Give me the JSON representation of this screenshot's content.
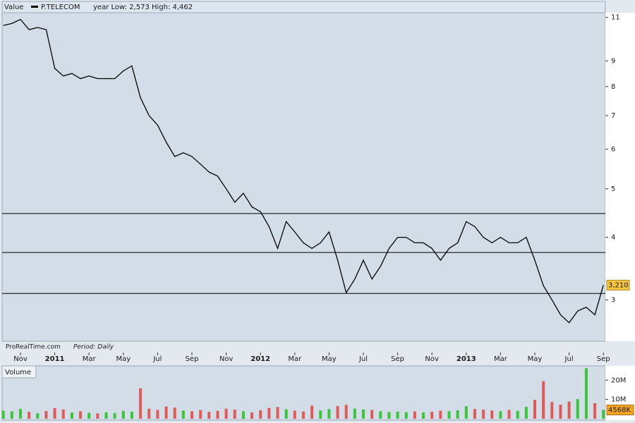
{
  "chart_data": [
    {
      "type": "line",
      "title": "Value",
      "subtitle": "year Low: 2,573 High: 4,462",
      "annotations": [
        "ProRealTime.com",
        "Period: Daily"
      ],
      "log_scale": true,
      "categories": [
        null,
        null,
        "Nov",
        null,
        null,
        null,
        "2011",
        null,
        null,
        null,
        "Mar",
        null,
        null,
        null,
        "May",
        null,
        null,
        null,
        "Jul",
        null,
        null,
        null,
        "Sep",
        null,
        null,
        null,
        "Nov",
        null,
        null,
        null,
        "2012",
        null,
        null,
        null,
        "Mar",
        null,
        null,
        null,
        "May",
        null,
        null,
        null,
        "Jul",
        null,
        null,
        null,
        "Sep",
        null,
        null,
        null,
        "Nov",
        null,
        null,
        null,
        "2013",
        null,
        null,
        null,
        "Mar",
        null,
        null,
        null,
        "May",
        null,
        null,
        null,
        "Jul",
        null,
        null,
        null,
        "Sep"
      ],
      "series": [
        {
          "name": "P.TELECOM",
          "color": "#000000",
          "values": [
            10.6,
            10.7,
            10.9,
            10.4,
            10.5,
            10.4,
            8.7,
            8.4,
            8.5,
            8.3,
            8.4,
            8.3,
            8.3,
            8.3,
            8.6,
            8.8,
            7.6,
            7.0,
            6.7,
            6.2,
            5.8,
            5.9,
            5.8,
            5.6,
            5.4,
            5.3,
            5.0,
            4.7,
            4.9,
            4.6,
            4.5,
            4.2,
            3.8,
            4.3,
            4.1,
            3.9,
            3.8,
            3.9,
            4.1,
            3.6,
            3.1,
            3.3,
            3.6,
            3.3,
            3.5,
            3.8,
            4.0,
            4.0,
            3.9,
            3.9,
            3.8,
            3.6,
            3.8,
            3.9,
            4.3,
            4.2,
            4.0,
            3.9,
            4.0,
            3.9,
            3.9,
            4.0,
            3.6,
            3.2,
            3.0,
            2.8,
            2.7,
            2.85,
            2.9,
            2.8,
            3.21
          ],
          "last_label": "3,210"
        }
      ],
      "reference_lines": [
        4.462,
        3.73,
        3.09
      ],
      "ylim": [
        2.48,
        11.24
      ],
      "yticks": [
        3,
        4,
        5,
        6,
        7,
        8,
        9,
        11
      ],
      "grid": false
    },
    {
      "type": "bar",
      "title": "Volume",
      "up_color": "#3cc43c",
      "down_color": "#e05a5a",
      "values": [
        4200000,
        3800000,
        5100000,
        3600000,
        2900000,
        4000000,
        5500000,
        4800000,
        3300000,
        3900000,
        3100000,
        2800000,
        3400000,
        3000000,
        4100000,
        3700000,
        15800000,
        5200000,
        4600000,
        6300000,
        5800000,
        4300000,
        3900000,
        4500000,
        3600000,
        4100000,
        5200000,
        4700000,
        3900000,
        3300000,
        4400000,
        5600000,
        6100000,
        4900000,
        4200000,
        3800000,
        6800000,
        4300000,
        5000000,
        6600000,
        7200000,
        5300000,
        4800000,
        4600000,
        3900000,
        3500000,
        3700000,
        3400000,
        3800000,
        3300000,
        3600000,
        4200000,
        3900000,
        4400000,
        6500000,
        5100000,
        4700000,
        4300000,
        3900000,
        4600000,
        4100000,
        6200000,
        9800000,
        19500000,
        8700000,
        7300000,
        8900000,
        10200000,
        26200000,
        8100000,
        4568000
      ],
      "last_label": "4568K",
      "ylim": [
        0,
        27400000
      ],
      "yticks": [
        {
          "value": 10000000,
          "label": "10M"
        },
        {
          "value": 20000000,
          "label": "20M"
        }
      ]
    }
  ]
}
